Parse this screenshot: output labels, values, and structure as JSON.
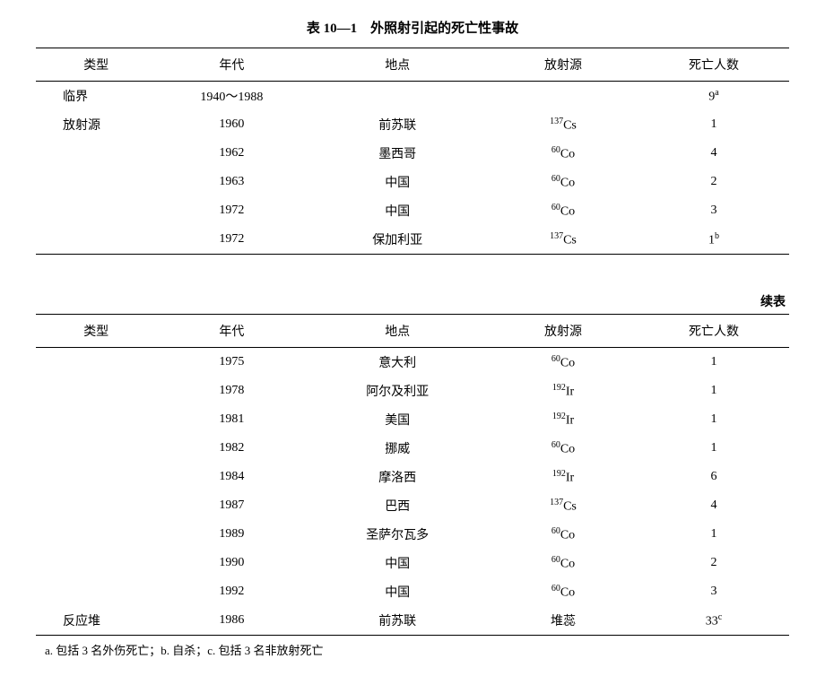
{
  "title": "表 10—1　外照射引起的死亡性事故",
  "continue_label": "续表",
  "columns": {
    "type": "类型",
    "year": "年代",
    "location": "地点",
    "source": "放射源",
    "deaths": "死亡人数"
  },
  "table1_rows": [
    {
      "type": "临界",
      "year": "1940～1988",
      "location": "",
      "src_mass": "",
      "src_el": "",
      "deaths": "9",
      "note": "a"
    },
    {
      "type": "放射源",
      "year": "1960",
      "location": "前苏联",
      "src_mass": "137",
      "src_el": "Cs",
      "deaths": "1",
      "note": ""
    },
    {
      "type": "",
      "year": "1962",
      "location": "墨西哥",
      "src_mass": "60",
      "src_el": "Co",
      "deaths": "4",
      "note": ""
    },
    {
      "type": "",
      "year": "1963",
      "location": "中国",
      "src_mass": "60",
      "src_el": "Co",
      "deaths": "2",
      "note": ""
    },
    {
      "type": "",
      "year": "1972",
      "location": "中国",
      "src_mass": "60",
      "src_el": "Co",
      "deaths": "3",
      "note": ""
    },
    {
      "type": "",
      "year": "1972",
      "location": "保加利亚",
      "src_mass": "137",
      "src_el": "Cs",
      "deaths": "1",
      "note": "b"
    }
  ],
  "table2_rows": [
    {
      "type": "",
      "year": "1975",
      "location": "意大利",
      "src_mass": "60",
      "src_el": "Co",
      "deaths": "1",
      "note": ""
    },
    {
      "type": "",
      "year": "1978",
      "location": "阿尔及利亚",
      "src_mass": "192",
      "src_el": "Ir",
      "deaths": "1",
      "note": ""
    },
    {
      "type": "",
      "year": "1981",
      "location": "美国",
      "src_mass": "192",
      "src_el": "Ir",
      "deaths": "1",
      "note": ""
    },
    {
      "type": "",
      "year": "1982",
      "location": "挪威",
      "src_mass": "60",
      "src_el": "Co",
      "deaths": "1",
      "note": ""
    },
    {
      "type": "",
      "year": "1984",
      "location": "摩洛西",
      "src_mass": "192",
      "src_el": "Ir",
      "deaths": "6",
      "note": ""
    },
    {
      "type": "",
      "year": "1987",
      "location": "巴西",
      "src_mass": "137",
      "src_el": "Cs",
      "deaths": "4",
      "note": ""
    },
    {
      "type": "",
      "year": "1989",
      "location": "圣萨尔瓦多",
      "src_mass": "60",
      "src_el": "Co",
      "deaths": "1",
      "note": ""
    },
    {
      "type": "",
      "year": "1990",
      "location": "中国",
      "src_mass": "60",
      "src_el": "Co",
      "deaths": "2",
      "note": ""
    },
    {
      "type": "",
      "year": "1992",
      "location": "中国",
      "src_mass": "60",
      "src_el": "Co",
      "deaths": "3",
      "note": ""
    },
    {
      "type": "反应堆",
      "year": "1986",
      "location": "前苏联",
      "src_mass": "",
      "src_el": "堆蕊",
      "deaths": "33",
      "note": "c"
    }
  ],
  "footnote": "a. 包括 3 名外伤死亡；b. 自杀；c. 包括 3 名非放射死亡"
}
